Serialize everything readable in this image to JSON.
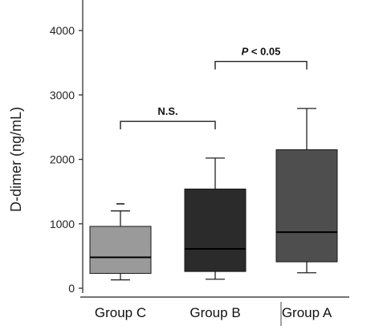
{
  "chart_data": {
    "type": "box",
    "ylabel": "D-dimer (ng/mL)",
    "ylim": [
      0,
      4400
    ],
    "yticks": [
      0,
      1000,
      2000,
      3000,
      4000
    ],
    "ytick_labels": [
      "0",
      "1000",
      "2000",
      "3000",
      "4000"
    ],
    "categories": [
      "Group C",
      "Group B",
      "Group A"
    ],
    "boxes": [
      {
        "name": "Group C",
        "whisker_low": 130,
        "q1": 230,
        "median": 480,
        "q3": 960,
        "whisker_high": 1200,
        "outlier": 1310,
        "color": "#9a9a9a"
      },
      {
        "name": "Group B",
        "whisker_low": 140,
        "q1": 260,
        "median": 610,
        "q3": 1540,
        "whisker_high": 2020,
        "color": "#2b2b2b"
      },
      {
        "name": "Group A",
        "whisker_low": 240,
        "q1": 410,
        "median": 870,
        "q3": 2150,
        "whisker_high": 2790,
        "color": "#4e4e4e"
      }
    ],
    "annotations": [
      {
        "label": "N.S.",
        "between": [
          "Group C",
          "Group B"
        ],
        "y": 2590
      },
      {
        "label_italic": "P",
        "label_rest": " < 0.05",
        "between": [
          "Group B",
          "Group A"
        ],
        "y": 3520
      }
    ]
  }
}
